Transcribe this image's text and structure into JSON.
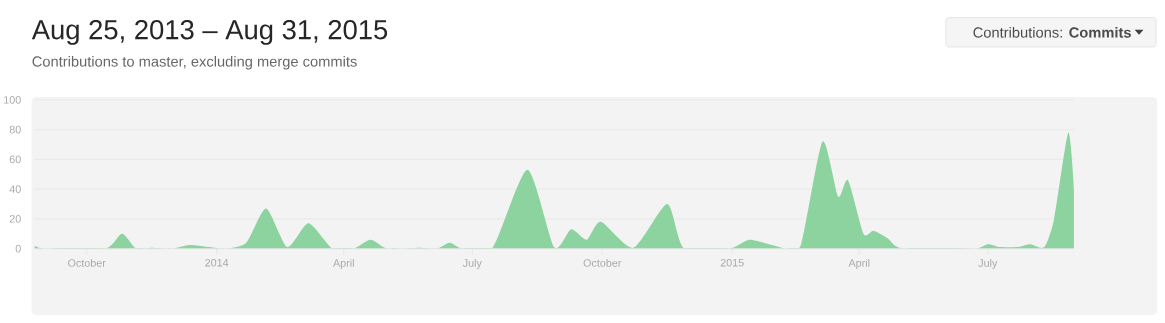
{
  "chart_data": {
    "type": "area",
    "title": "Aug 25, 2013 – Aug 31, 2015",
    "subtitle": "Contributions to master, excluding merge commits",
    "annotations": [
      "Contributions: **Commits**"
    ],
    "x": [
      "2013-08-25",
      "2013-09-02",
      "2013-10-14",
      "2013-10-26",
      "2013-11-05",
      "2013-11-16",
      "2013-11-30",
      "2013-12-13",
      "2013-12-27",
      "2014-01-07",
      "2014-01-22",
      "2014-02-05",
      "2014-02-20",
      "2014-03-07",
      "2014-03-24",
      "2014-04-08",
      "2014-04-20",
      "2014-05-02",
      "2014-05-25",
      "2014-06-06",
      "2014-06-15",
      "2014-06-24",
      "2014-07-15",
      "2014-08-09",
      "2014-08-28",
      "2014-09-09",
      "2014-09-20",
      "2014-09-30",
      "2014-10-23",
      "2014-11-16",
      "2014-11-28",
      "2014-12-30",
      "2015-01-13",
      "2015-01-27",
      "2015-02-09",
      "2015-02-19",
      "2015-03-06",
      "2015-03-17",
      "2015-03-24",
      "2015-04-04",
      "2015-04-11",
      "2015-04-21",
      "2015-05-02",
      "2015-06-21",
      "2015-07-01",
      "2015-07-10",
      "2015-07-22",
      "2015-07-31",
      "2015-08-10",
      "2015-08-17",
      "2015-08-27",
      "2015-08-31"
    ],
    "values": [
      2,
      0,
      0,
      10,
      0,
      0.5,
      0,
      2.5,
      1,
      0,
      4,
      27,
      1,
      17,
      0,
      0,
      6,
      0,
      0.5,
      0,
      4,
      0,
      0,
      53,
      1,
      13,
      6,
      18,
      0.5,
      30,
      0,
      0,
      6,
      3,
      0,
      3.5,
      72,
      35,
      46,
      10,
      12,
      7,
      0,
      0,
      3,
      1,
      1,
      3,
      1,
      20,
      78,
      40
    ],
    "color": "#8cd3a0",
    "xlim": [
      "2013-08-25",
      "2015-08-31"
    ],
    "xticks": [
      {
        "value": "2013-10-01",
        "label": "October"
      },
      {
        "value": "2014-01-01",
        "label": "2014"
      },
      {
        "value": "2014-04-01",
        "label": "April"
      },
      {
        "value": "2014-07-01",
        "label": "July"
      },
      {
        "value": "2014-10-01",
        "label": "October"
      },
      {
        "value": "2015-01-01",
        "label": "2015"
      },
      {
        "value": "2015-04-01",
        "label": "April"
      },
      {
        "value": "2015-07-01",
        "label": "July"
      }
    ],
    "ylim": [
      0,
      100
    ],
    "yticks": [
      0,
      20,
      40,
      60,
      80,
      100
    ],
    "grid": "y"
  }
}
